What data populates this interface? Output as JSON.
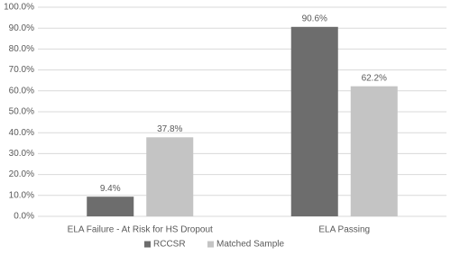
{
  "chart_data": {
    "type": "bar",
    "categories": [
      "ELA Failure - At Risk for HS Dropout",
      "ELA Passing"
    ],
    "series": [
      {
        "name": "RCCSR",
        "color": "#6d6d6d",
        "values": [
          9.4,
          90.6
        ],
        "value_labels": [
          "9.4%",
          "90.6%"
        ]
      },
      {
        "name": "Matched Sample",
        "color": "#c4c4c4",
        "values": [
          37.8,
          62.2
        ],
        "value_labels": [
          "37.8%",
          "62.2%"
        ]
      }
    ],
    "ylim": [
      0,
      100
    ],
    "yticks": [
      {
        "value": 0,
        "label": "0.0%"
      },
      {
        "value": 10,
        "label": "10.0%"
      },
      {
        "value": 20,
        "label": "20.0%"
      },
      {
        "value": 30,
        "label": "30.0%"
      },
      {
        "value": 40,
        "label": "40.0%"
      },
      {
        "value": 50,
        "label": "50.0%"
      },
      {
        "value": 60,
        "label": "60.0%"
      },
      {
        "value": 70,
        "label": "70.0%"
      },
      {
        "value": 80,
        "label": "80.0%"
      },
      {
        "value": 90,
        "label": "90.0%"
      },
      {
        "value": 100,
        "label": "100.0%"
      }
    ],
    "grid": true,
    "legend": "bottom"
  }
}
